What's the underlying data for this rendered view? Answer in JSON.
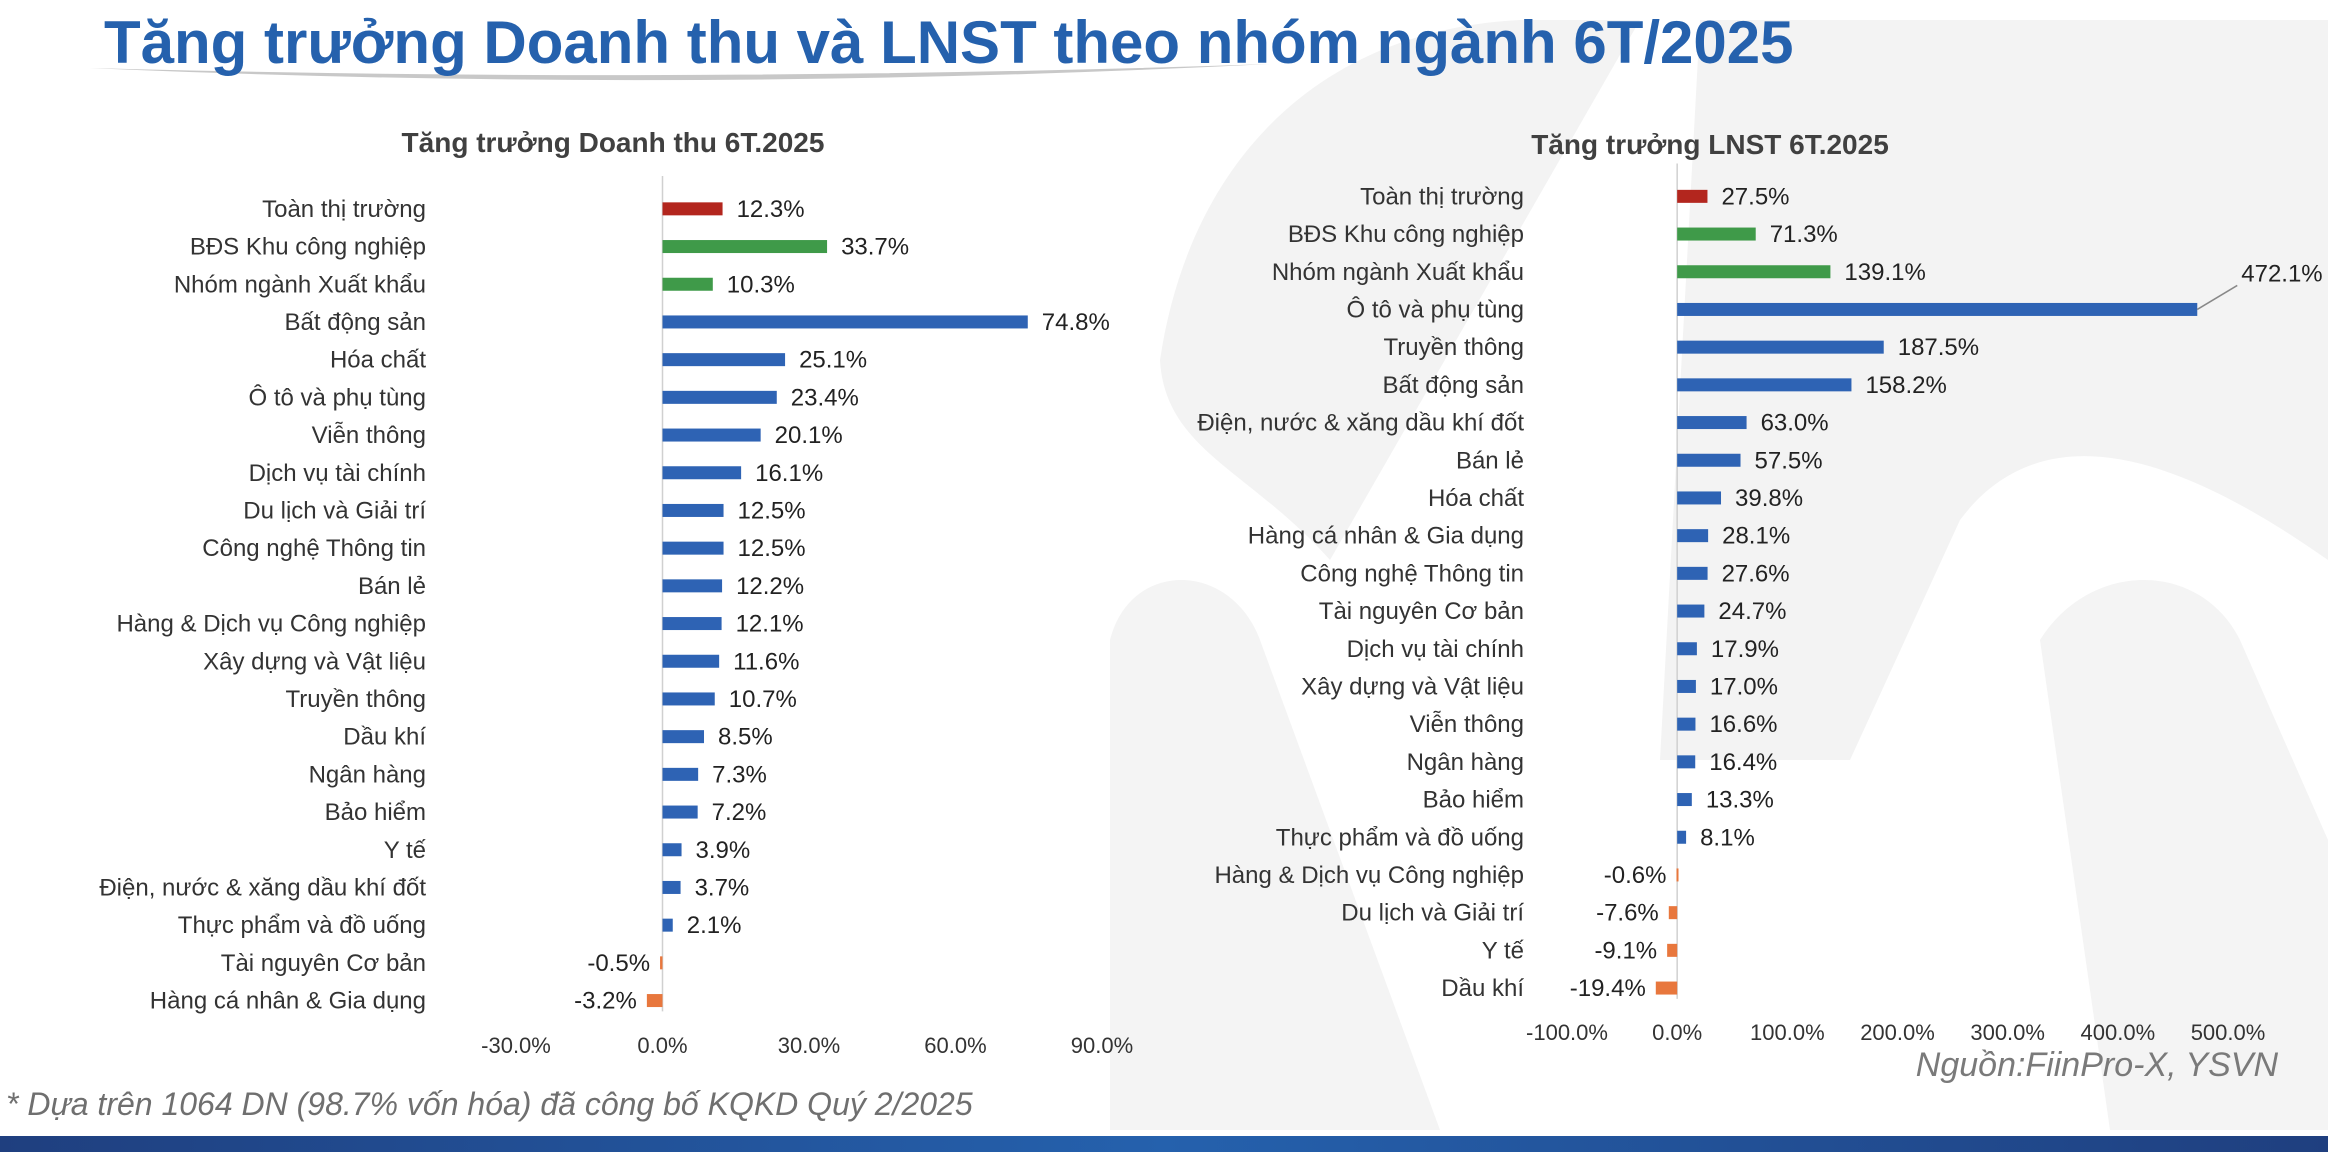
{
  "page": {
    "title": "Tăng trưởng Doanh thu và LNST theo nhóm ngành 6T/2025",
    "footnote": "* Dựa trên 1064 DN (98.7% vốn hóa) đã công bố KQKD Quý 2/2025",
    "source": "Nguồn:FiinPro-X, YSVN"
  },
  "colors": {
    "title": "#2561ad",
    "market": "#b3261e",
    "highlight": "#3f9a49",
    "positive": "#2e63b4",
    "negative": "#e8773d",
    "footer_bar": "#2561ad"
  },
  "chart_data": [
    {
      "type": "bar",
      "orientation": "horizontal",
      "title": "Tăng trưởng Doanh thu 6T.2025",
      "xlim": [
        -30,
        90
      ],
      "xticks": [
        -30,
        0,
        30,
        60,
        90
      ],
      "tick_format": "percent_1dp",
      "grid": false,
      "categories": [
        "Toàn thị trường",
        "BĐS Khu công nghiệp",
        "Nhóm ngành Xuất khẩu",
        "Bất động sản",
        "Hóa chất",
        "Ô tô và phụ tùng",
        "Viễn thông",
        "Dịch vụ tài chính",
        "Du lịch và Giải trí",
        "Công nghệ Thông tin",
        "Bán lẻ",
        "Hàng & Dịch vụ Công nghiệp",
        "Xây dựng và Vật liệu",
        "Truyền thông",
        "Dầu khí",
        "Ngân hàng",
        "Bảo hiểm",
        "Y tế",
        "Điện, nước & xăng dầu khí đốt",
        "Thực phẩm và đồ uống",
        "Tài nguyên Cơ bản",
        "Hàng cá nhân & Gia dụng"
      ],
      "values": [
        12.3,
        33.7,
        10.3,
        74.8,
        25.1,
        23.4,
        20.1,
        16.1,
        12.5,
        12.5,
        12.2,
        12.1,
        11.6,
        10.7,
        8.5,
        7.3,
        7.2,
        3.9,
        3.7,
        2.1,
        -0.5,
        -3.2
      ],
      "groups": [
        "market",
        "highlight",
        "highlight",
        "normal",
        "normal",
        "normal",
        "normal",
        "normal",
        "normal",
        "normal",
        "normal",
        "normal",
        "normal",
        "normal",
        "normal",
        "normal",
        "normal",
        "normal",
        "normal",
        "normal",
        "normal",
        "normal"
      ]
    },
    {
      "type": "bar",
      "orientation": "horizontal",
      "title": "Tăng trưởng LNST 6T.2025",
      "xlim": [
        -100,
        500
      ],
      "xticks": [
        -100,
        0,
        100,
        200,
        300,
        400,
        500
      ],
      "tick_format": "percent_1dp",
      "grid": false,
      "categories": [
        "Toàn thị trường",
        "BĐS Khu công nghiệp",
        "Nhóm ngành Xuất khẩu",
        "Ô tô và phụ tùng",
        "Truyền thông",
        "Bất động sản",
        "Điện, nước & xăng dầu khí đốt",
        "Bán lẻ",
        "Hóa chất",
        "Hàng cá nhân & Gia dụng",
        "Công nghệ Thông tin",
        "Tài nguyên Cơ bản",
        "Dịch vụ tài chính",
        "Xây dựng và Vật liệu",
        "Viễn thông",
        "Ngân hàng",
        "Bảo hiểm",
        "Thực phẩm và đồ uống",
        "Hàng & Dịch vụ Công nghiệp",
        "Du lịch và Giải trí",
        "Y tế",
        "Dầu khí"
      ],
      "values": [
        27.5,
        71.3,
        139.1,
        472.1,
        187.5,
        158.2,
        63.0,
        57.5,
        39.8,
        28.1,
        27.6,
        24.7,
        17.9,
        17.0,
        16.6,
        16.4,
        13.3,
        8.1,
        -0.6,
        -7.6,
        -9.1,
        -19.4
      ],
      "groups": [
        "market",
        "highlight",
        "highlight",
        "normal",
        "normal",
        "normal",
        "normal",
        "normal",
        "normal",
        "normal",
        "normal",
        "normal",
        "normal",
        "normal",
        "normal",
        "normal",
        "normal",
        "normal",
        "normal",
        "normal",
        "normal",
        "normal"
      ],
      "callout": "Ô tô và phụ tùng"
    }
  ]
}
